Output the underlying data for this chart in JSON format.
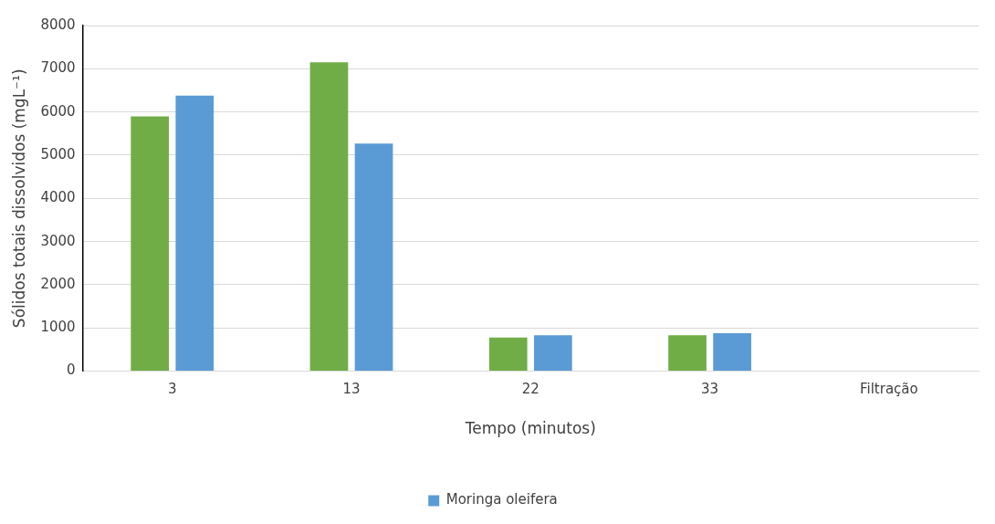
{
  "chart_data": {
    "type": "bar",
    "xlabel": "Tempo (minutos)",
    "ylabel": "Sólidos totais dissolvidos (mgL⁻¹)",
    "categories": [
      "3",
      "13",
      "22",
      "33",
      "Filtração"
    ],
    "series": [
      {
        "color": "#70ad47",
        "values": [
          5900,
          7150,
          780,
          830,
          null
        ]
      },
      {
        "name": "Moringa oleifera",
        "color": "#5b9bd5",
        "values": [
          6380,
          5270,
          830,
          880,
          null
        ]
      }
    ],
    "ylim": [
      0,
      8000
    ],
    "yticks": [
      0,
      1000,
      2000,
      3000,
      4000,
      5000,
      6000,
      7000,
      8000
    ],
    "grid": "y",
    "legend": "bottom"
  }
}
